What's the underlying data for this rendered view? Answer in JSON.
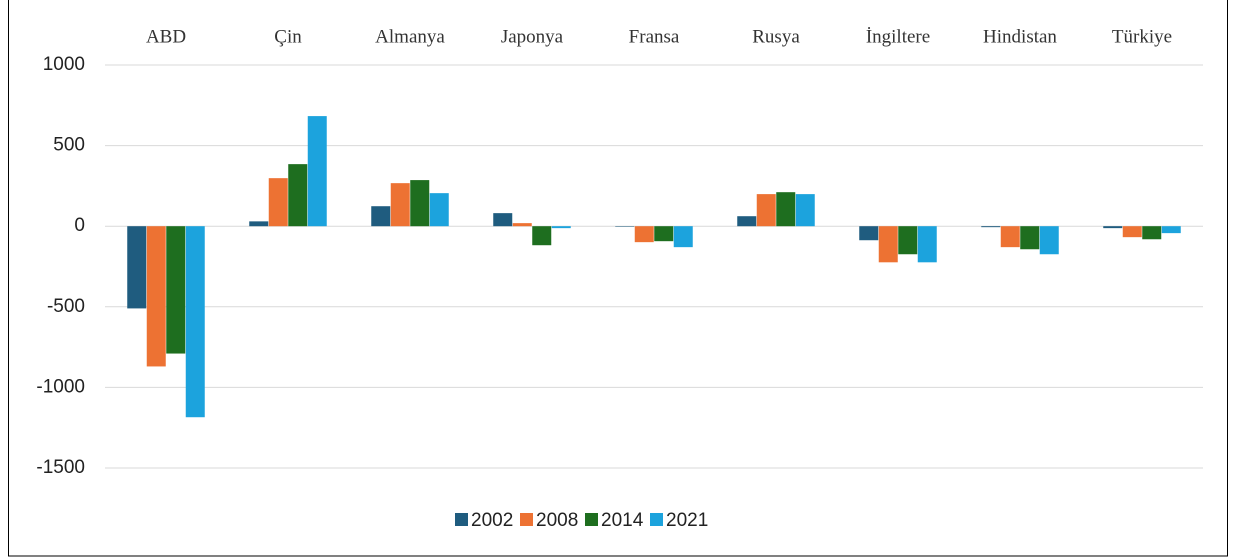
{
  "chart_data": {
    "type": "bar",
    "categories": [
      "ABD",
      "Çin",
      "Almanya",
      "Japonya",
      "Fransa",
      "Rusya",
      "İngiltere",
      "Hindistan",
      "Türkiye"
    ],
    "series": [
      {
        "name": "2002",
        "color": "#1f5c7f",
        "values": [
          -510,
          30,
          124,
          81,
          -3,
          62,
          -87,
          -6,
          -12
        ]
      },
      {
        "name": "2008",
        "color": "#ed7233",
        "values": [
          -870,
          298,
          267,
          19,
          -99,
          199,
          -224,
          -130,
          -68
        ]
      },
      {
        "name": "2014",
        "color": "#1e6e1f",
        "values": [
          -790,
          385,
          286,
          -118,
          -93,
          211,
          -174,
          -143,
          -81
        ]
      },
      {
        "name": "2021",
        "color": "#1ca3dd",
        "values": [
          -1185,
          683,
          205,
          -12,
          -130,
          199,
          -224,
          -174,
          -43
        ]
      }
    ],
    "ylim": [
      -1500,
      1000
    ],
    "yticks": [
      -1500,
      -1000,
      -500,
      0,
      500,
      1000
    ],
    "grid": true,
    "legend": "bottom"
  }
}
